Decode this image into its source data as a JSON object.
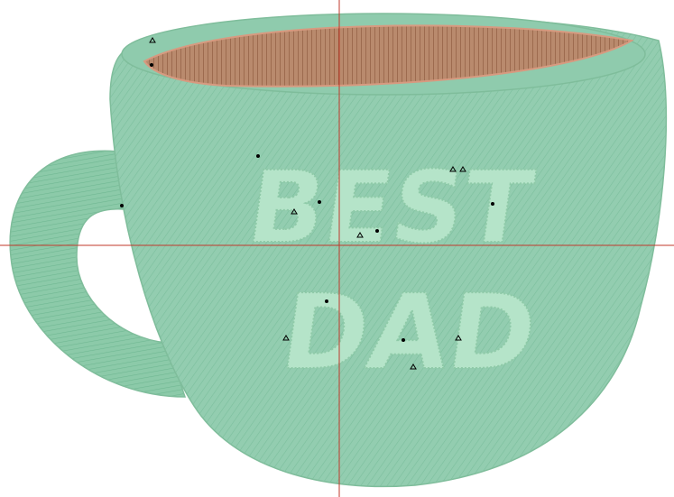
{
  "design": {
    "line1": "BEST",
    "line2": "DAD"
  }
}
